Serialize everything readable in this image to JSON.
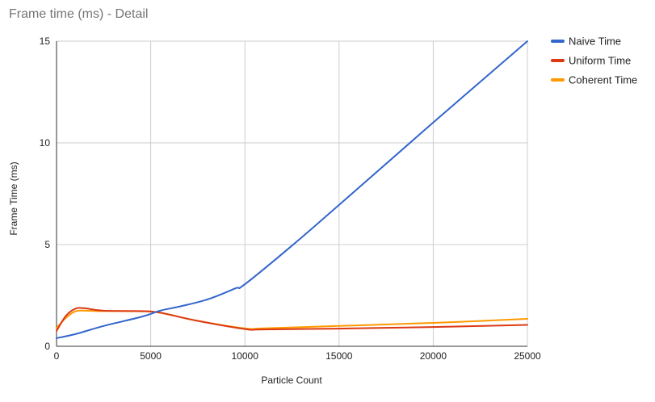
{
  "chart_data": {
    "type": "line",
    "title": "Frame time (ms) - Detail",
    "xlabel": "Particle Count",
    "ylabel": "Frame Time (ms)",
    "xlim": [
      0,
      25000
    ],
    "ylim": [
      0,
      15
    ],
    "x_ticks": [
      "0",
      "5000",
      "10000",
      "15000",
      "20000",
      "25000"
    ],
    "y_ticks": [
      "0",
      "5",
      "10",
      "15"
    ],
    "grid": true,
    "legend_position": "right",
    "series": [
      {
        "name": "Naive Time",
        "color": "#3366cc",
        "x": [
          0,
          1000,
          2500,
          4500,
          5500,
          6500,
          8000,
          9500,
          10000,
          12500,
          15000,
          20000,
          25000
        ],
        "y": [
          0.4,
          0.6,
          1.0,
          1.45,
          1.75,
          1.95,
          2.3,
          2.85,
          3.05,
          4.95,
          6.95,
          11.0,
          15.0
        ]
      },
      {
        "name": "Uniform Time",
        "color": "#dc3912",
        "x": [
          0,
          500,
          1000,
          1500,
          2500,
          4500,
          5500,
          7500,
          10000,
          11000,
          15000,
          20000,
          25000
        ],
        "y": [
          0.75,
          1.5,
          1.85,
          1.87,
          1.75,
          1.73,
          1.65,
          1.25,
          0.85,
          0.83,
          0.87,
          0.95,
          1.05
        ]
      },
      {
        "name": "Coherent Time",
        "color": "#ff9900",
        "x": [
          0,
          500,
          1000,
          1500,
          2500,
          4500,
          5500,
          7500,
          10000,
          11000,
          15000,
          20000,
          25000
        ],
        "y": [
          0.9,
          1.4,
          1.72,
          1.75,
          1.73,
          1.72,
          1.65,
          1.25,
          0.88,
          0.88,
          1.0,
          1.15,
          1.35
        ]
      }
    ]
  }
}
